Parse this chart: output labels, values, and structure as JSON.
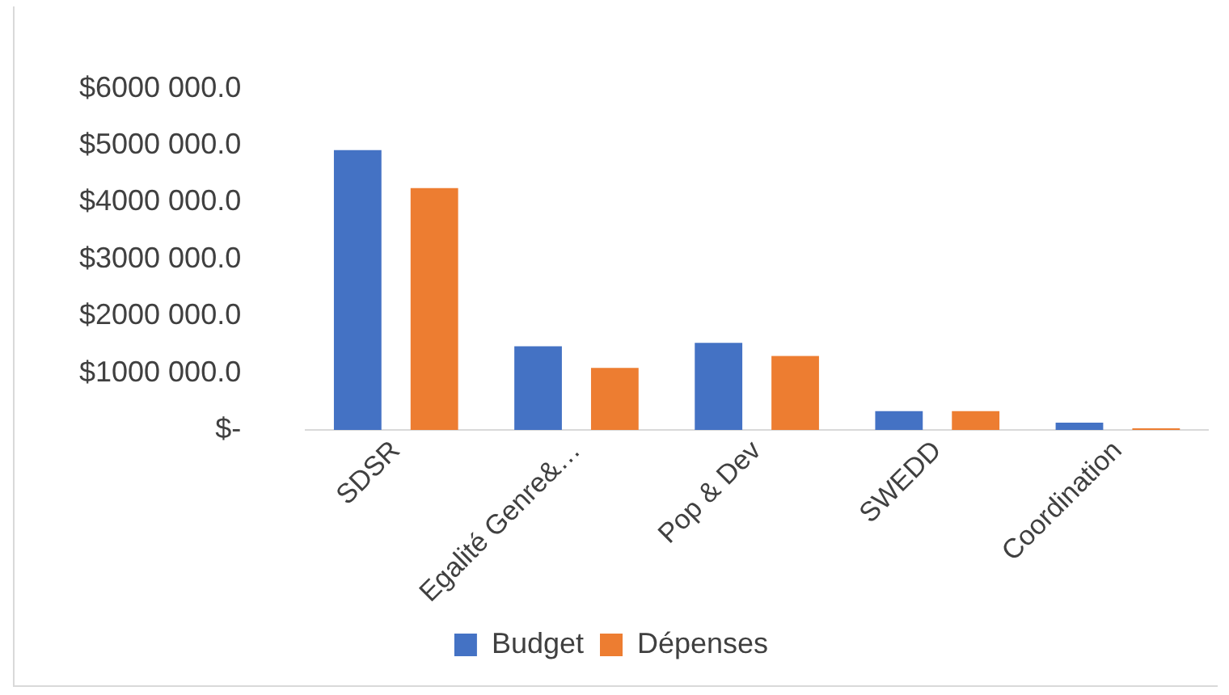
{
  "chart_data": {
    "type": "bar",
    "categories": [
      "SDSR",
      "Egalité Genre&…",
      "Pop & Dev",
      "SWEDD",
      "Coordination"
    ],
    "series": [
      {
        "name": "Budget",
        "color": "#4472c4",
        "values": [
          4920000,
          1470000,
          1530000,
          330000,
          130000
        ]
      },
      {
        "name": "Dépenses",
        "color": "#ed7d31",
        "values": [
          4250000,
          1090000,
          1300000,
          330000,
          30000
        ]
      }
    ],
    "ylim": [
      0,
      6000000
    ],
    "yticks": [
      {
        "value": 0,
        "label": "$-"
      },
      {
        "value": 1000000,
        "label": "$1000 000.0"
      },
      {
        "value": 2000000,
        "label": "$2000 000.0"
      },
      {
        "value": 3000000,
        "label": "$3000 000.0"
      },
      {
        "value": 4000000,
        "label": "$4000 000.0"
      },
      {
        "value": 5000000,
        "label": "$5000 000.0"
      },
      {
        "value": 6000000,
        "label": "$6000 000.0"
      }
    ],
    "grid": false,
    "legend": "bottom"
  }
}
